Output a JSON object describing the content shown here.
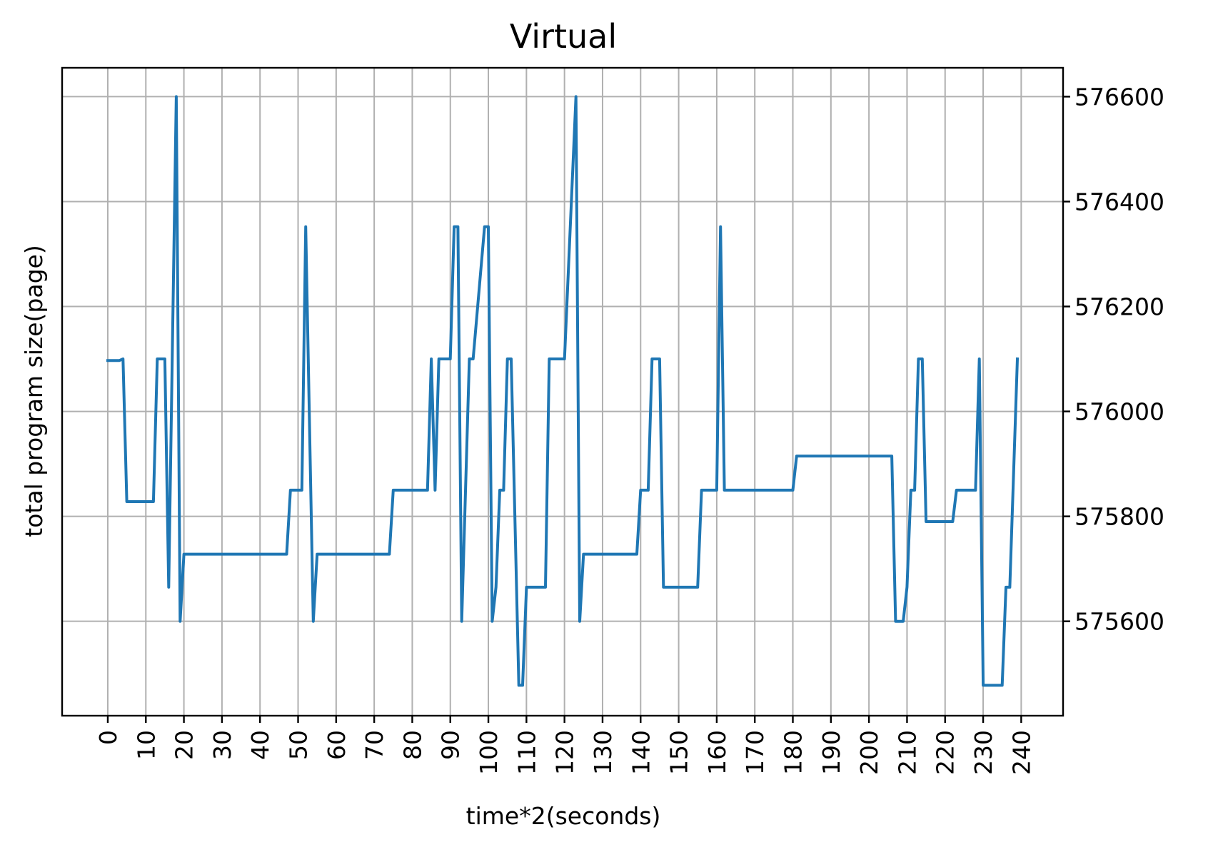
{
  "chart_data": {
    "type": "line",
    "title": "Virtual",
    "xlabel": "time*2(seconds)",
    "ylabel": "total program size(page)",
    "grid": true,
    "y_axis_side": "right",
    "xlim": [
      -12,
      251
    ],
    "ylim": [
      575420,
      576655
    ],
    "x_ticks": [
      0,
      10,
      20,
      30,
      40,
      50,
      60,
      70,
      80,
      90,
      100,
      110,
      120,
      130,
      140,
      150,
      160,
      170,
      180,
      190,
      200,
      210,
      220,
      230,
      240
    ],
    "y_ticks": [
      575600,
      575800,
      576000,
      576200,
      576400,
      576600
    ],
    "series": [
      {
        "color": "#1f77b4",
        "x": [
          0,
          3,
          4,
          5,
          12,
          13,
          15,
          16,
          18,
          19,
          20,
          47,
          48,
          51,
          52,
          54,
          55,
          74,
          75,
          84,
          85,
          86,
          87,
          90,
          91,
          92,
          93,
          95,
          96,
          99,
          100,
          101,
          102,
          103,
          104,
          105,
          106,
          108,
          109,
          110,
          111,
          115,
          116,
          120,
          123,
          124,
          125,
          139,
          140,
          142,
          143,
          145,
          146,
          148,
          155,
          156,
          160,
          161,
          162,
          180,
          181,
          206,
          207,
          209,
          210,
          211,
          212,
          213,
          214,
          215,
          222,
          223,
          228,
          229,
          230,
          235,
          236,
          237,
          239
        ],
        "values": [
          576097,
          576097,
          576100,
          575828,
          575828,
          576100,
          576100,
          575665,
          576600,
          575600,
          575728,
          575728,
          575850,
          575850,
          576352,
          575600,
          575728,
          575728,
          575850,
          575850,
          576100,
          575850,
          576100,
          576100,
          576352,
          576352,
          575600,
          576100,
          576100,
          576352,
          576352,
          575600,
          575665,
          575850,
          575850,
          576100,
          576100,
          575478,
          575478,
          575665,
          575665,
          575665,
          576100,
          576100,
          576600,
          575600,
          575728,
          575728,
          575850,
          575850,
          576100,
          576100,
          575665,
          575665,
          575665,
          575850,
          575850,
          576352,
          575850,
          575850,
          575915,
          575915,
          575600,
          575600,
          575665,
          575850,
          575850,
          576100,
          576100,
          575790,
          575790,
          575850,
          575850,
          576100,
          575478,
          575478,
          575665,
          575665,
          576100
        ]
      }
    ]
  }
}
